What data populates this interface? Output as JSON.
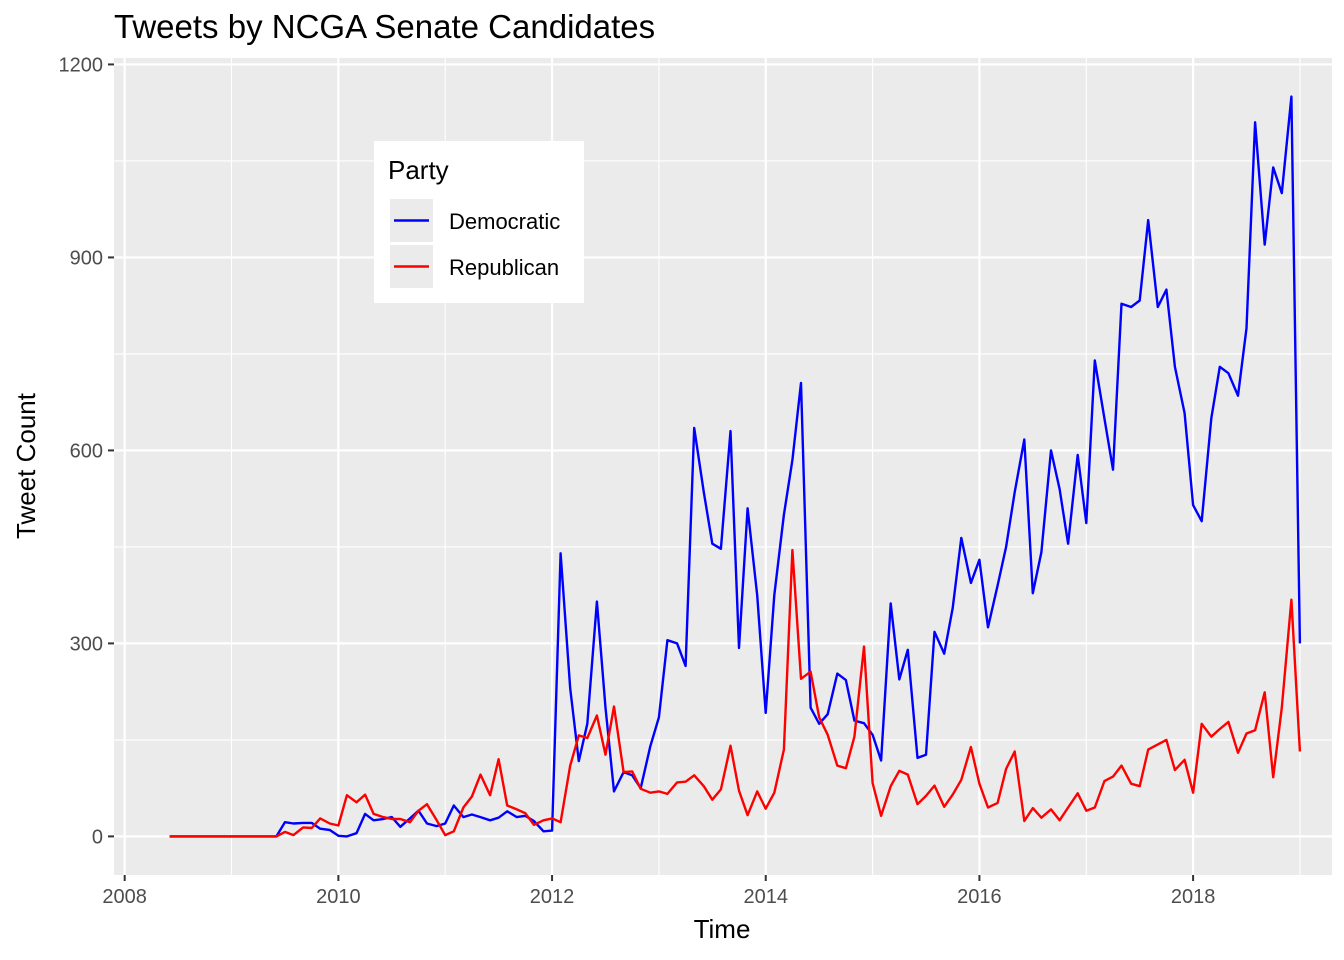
{
  "chart_data": {
    "type": "line",
    "title": "Tweets by NCGA Senate Candidates",
    "xlabel": "Time",
    "ylabel": "Tweet Count",
    "xlim": [
      2007.9,
      2019.3
    ],
    "ylim": [
      -60,
      1210
    ],
    "x_ticks": [
      2008,
      2010,
      2012,
      2014,
      2016,
      2018
    ],
    "x_tick_labels": [
      "2008",
      "2010",
      "2012",
      "2014",
      "2016",
      "2018"
    ],
    "y_ticks": [
      0,
      300,
      600,
      900,
      1200
    ],
    "y_tick_labels": [
      "0",
      "300",
      "600",
      "900",
      "1200"
    ],
    "grid": true,
    "legend": {
      "title": "Party",
      "placement": "top-left inside"
    },
    "series": [
      {
        "name": "Democratic",
        "color": "#0000ff",
        "points": [
          [
            2008.42,
            0
          ],
          [
            2008.5,
            0
          ],
          [
            2008.58,
            0
          ],
          [
            2008.67,
            0
          ],
          [
            2008.75,
            0
          ],
          [
            2008.83,
            0
          ],
          [
            2008.92,
            0
          ],
          [
            2009.0,
            0
          ],
          [
            2009.08,
            0
          ],
          [
            2009.17,
            0
          ],
          [
            2009.25,
            0
          ],
          [
            2009.33,
            0
          ],
          [
            2009.42,
            0
          ],
          [
            2009.5,
            22
          ],
          [
            2009.58,
            20
          ],
          [
            2009.67,
            21
          ],
          [
            2009.75,
            21
          ],
          [
            2009.83,
            12
          ],
          [
            2009.92,
            10
          ],
          [
            2010.0,
            1
          ],
          [
            2010.08,
            0
          ],
          [
            2010.17,
            5
          ],
          [
            2010.25,
            35
          ],
          [
            2010.33,
            25
          ],
          [
            2010.42,
            27
          ],
          [
            2010.5,
            30
          ],
          [
            2010.58,
            15
          ],
          [
            2010.67,
            28
          ],
          [
            2010.75,
            40
          ],
          [
            2010.83,
            20
          ],
          [
            2010.92,
            16
          ],
          [
            2011.0,
            20
          ],
          [
            2011.08,
            48
          ],
          [
            2011.17,
            30
          ],
          [
            2011.25,
            34
          ],
          [
            2011.33,
            30
          ],
          [
            2011.42,
            25
          ],
          [
            2011.5,
            29
          ],
          [
            2011.58,
            39
          ],
          [
            2011.67,
            30
          ],
          [
            2011.75,
            32
          ],
          [
            2011.83,
            24
          ],
          [
            2011.92,
            8
          ],
          [
            2012.0,
            9
          ],
          [
            2012.08,
            440
          ],
          [
            2012.17,
            230
          ],
          [
            2012.25,
            117
          ],
          [
            2012.33,
            175
          ],
          [
            2012.42,
            365
          ],
          [
            2012.5,
            200
          ],
          [
            2012.58,
            70
          ],
          [
            2012.67,
            100
          ],
          [
            2012.75,
            95
          ],
          [
            2012.83,
            75
          ],
          [
            2012.92,
            140
          ],
          [
            2013.0,
            185
          ],
          [
            2013.08,
            305
          ],
          [
            2013.17,
            300
          ],
          [
            2013.25,
            265
          ],
          [
            2013.33,
            635
          ],
          [
            2013.42,
            535
          ],
          [
            2013.5,
            455
          ],
          [
            2013.58,
            447
          ],
          [
            2013.67,
            630
          ],
          [
            2013.75,
            293
          ],
          [
            2013.83,
            510
          ],
          [
            2013.92,
            375
          ],
          [
            2014.0,
            192
          ],
          [
            2014.08,
            375
          ],
          [
            2014.17,
            500
          ],
          [
            2014.25,
            585
          ],
          [
            2014.33,
            705
          ],
          [
            2014.42,
            200
          ],
          [
            2014.5,
            175
          ],
          [
            2014.58,
            190
          ],
          [
            2014.67,
            253
          ],
          [
            2014.75,
            243
          ],
          [
            2014.83,
            180
          ],
          [
            2014.92,
            176
          ],
          [
            2015.0,
            158
          ],
          [
            2015.08,
            118
          ],
          [
            2015.17,
            362
          ],
          [
            2015.25,
            244
          ],
          [
            2015.33,
            290
          ],
          [
            2015.42,
            122
          ],
          [
            2015.5,
            127
          ],
          [
            2015.58,
            318
          ],
          [
            2015.67,
            284
          ],
          [
            2015.75,
            355
          ],
          [
            2015.83,
            464
          ],
          [
            2015.92,
            394
          ],
          [
            2016.0,
            430
          ],
          [
            2016.08,
            325
          ],
          [
            2016.17,
            390
          ],
          [
            2016.25,
            450
          ],
          [
            2016.33,
            535
          ],
          [
            2016.42,
            617
          ],
          [
            2016.5,
            378
          ],
          [
            2016.58,
            442
          ],
          [
            2016.67,
            600
          ],
          [
            2016.75,
            540
          ],
          [
            2016.83,
            455
          ],
          [
            2016.92,
            593
          ],
          [
            2017.0,
            487
          ],
          [
            2017.08,
            740
          ],
          [
            2017.17,
            650
          ],
          [
            2017.25,
            570
          ],
          [
            2017.33,
            828
          ],
          [
            2017.42,
            823
          ],
          [
            2017.5,
            833
          ],
          [
            2017.58,
            958
          ],
          [
            2017.67,
            823
          ],
          [
            2017.75,
            850
          ],
          [
            2017.83,
            730
          ],
          [
            2017.92,
            658
          ],
          [
            2018.0,
            515
          ],
          [
            2018.08,
            490
          ],
          [
            2018.17,
            650
          ],
          [
            2018.25,
            730
          ],
          [
            2018.33,
            720
          ],
          [
            2018.42,
            685
          ],
          [
            2018.5,
            790
          ],
          [
            2018.58,
            1110
          ],
          [
            2018.67,
            920
          ],
          [
            2018.75,
            1040
          ],
          [
            2018.83,
            1000
          ],
          [
            2018.92,
            1150
          ],
          [
            2019.0,
            300
          ]
        ]
      },
      {
        "name": "Republican",
        "color": "#ff0000",
        "points": [
          [
            2008.42,
            0
          ],
          [
            2008.5,
            0
          ],
          [
            2008.58,
            0
          ],
          [
            2008.67,
            0
          ],
          [
            2008.75,
            0
          ],
          [
            2008.83,
            0
          ],
          [
            2008.92,
            0
          ],
          [
            2009.0,
            0
          ],
          [
            2009.08,
            0
          ],
          [
            2009.17,
            0
          ],
          [
            2009.25,
            0
          ],
          [
            2009.33,
            0
          ],
          [
            2009.42,
            0
          ],
          [
            2009.5,
            7
          ],
          [
            2009.58,
            2
          ],
          [
            2009.67,
            14
          ],
          [
            2009.75,
            13
          ],
          [
            2009.83,
            28
          ],
          [
            2009.92,
            20
          ],
          [
            2010.0,
            17
          ],
          [
            2010.08,
            64
          ],
          [
            2010.17,
            53
          ],
          [
            2010.25,
            65
          ],
          [
            2010.33,
            35
          ],
          [
            2010.42,
            30
          ],
          [
            2010.5,
            27
          ],
          [
            2010.58,
            27
          ],
          [
            2010.67,
            22
          ],
          [
            2010.75,
            40
          ],
          [
            2010.83,
            50
          ],
          [
            2010.92,
            25
          ],
          [
            2011.0,
            2
          ],
          [
            2011.08,
            8
          ],
          [
            2011.17,
            45
          ],
          [
            2011.25,
            62
          ],
          [
            2011.33,
            96
          ],
          [
            2011.42,
            64
          ],
          [
            2011.5,
            120
          ],
          [
            2011.58,
            48
          ],
          [
            2011.67,
            42
          ],
          [
            2011.75,
            36
          ],
          [
            2011.83,
            18
          ],
          [
            2011.92,
            25
          ],
          [
            2012.0,
            28
          ],
          [
            2012.08,
            22
          ],
          [
            2012.17,
            110
          ],
          [
            2012.25,
            157
          ],
          [
            2012.33,
            153
          ],
          [
            2012.42,
            188
          ],
          [
            2012.5,
            127
          ],
          [
            2012.58,
            202
          ],
          [
            2012.67,
            100
          ],
          [
            2012.75,
            101
          ],
          [
            2012.83,
            74
          ],
          [
            2012.92,
            68
          ],
          [
            2013.0,
            70
          ],
          [
            2013.08,
            66
          ],
          [
            2013.17,
            84
          ],
          [
            2013.25,
            85
          ],
          [
            2013.33,
            95
          ],
          [
            2013.42,
            78
          ],
          [
            2013.5,
            57
          ],
          [
            2013.58,
            73
          ],
          [
            2013.67,
            141
          ],
          [
            2013.75,
            71
          ],
          [
            2013.83,
            33
          ],
          [
            2013.92,
            70
          ],
          [
            2014.0,
            43
          ],
          [
            2014.08,
            68
          ],
          [
            2014.17,
            135
          ],
          [
            2014.25,
            445
          ],
          [
            2014.33,
            245
          ],
          [
            2014.42,
            256
          ],
          [
            2014.5,
            185
          ],
          [
            2014.58,
            158
          ],
          [
            2014.67,
            110
          ],
          [
            2014.75,
            106
          ],
          [
            2014.83,
            155
          ],
          [
            2014.92,
            295
          ],
          [
            2015.0,
            83
          ],
          [
            2015.08,
            32
          ],
          [
            2015.17,
            78
          ],
          [
            2015.25,
            102
          ],
          [
            2015.33,
            96
          ],
          [
            2015.42,
            50
          ],
          [
            2015.5,
            63
          ],
          [
            2015.58,
            79
          ],
          [
            2015.67,
            46
          ],
          [
            2015.75,
            65
          ],
          [
            2015.83,
            88
          ],
          [
            2015.92,
            139
          ],
          [
            2016.0,
            82
          ],
          [
            2016.08,
            45
          ],
          [
            2016.17,
            52
          ],
          [
            2016.25,
            105
          ],
          [
            2016.33,
            132
          ],
          [
            2016.42,
            24
          ],
          [
            2016.5,
            44
          ],
          [
            2016.58,
            29
          ],
          [
            2016.67,
            42
          ],
          [
            2016.75,
            25
          ],
          [
            2016.83,
            45
          ],
          [
            2016.92,
            67
          ],
          [
            2017.0,
            40
          ],
          [
            2017.08,
            45
          ],
          [
            2017.17,
            86
          ],
          [
            2017.25,
            93
          ],
          [
            2017.33,
            110
          ],
          [
            2017.42,
            82
          ],
          [
            2017.5,
            78
          ],
          [
            2017.58,
            135
          ],
          [
            2017.67,
            143
          ],
          [
            2017.75,
            150
          ],
          [
            2017.83,
            103
          ],
          [
            2017.92,
            119
          ],
          [
            2018.0,
            68
          ],
          [
            2018.08,
            175
          ],
          [
            2018.17,
            155
          ],
          [
            2018.25,
            167
          ],
          [
            2018.33,
            178
          ],
          [
            2018.42,
            130
          ],
          [
            2018.5,
            160
          ],
          [
            2018.58,
            165
          ],
          [
            2018.67,
            224
          ],
          [
            2018.75,
            92
          ],
          [
            2018.83,
            200
          ],
          [
            2018.92,
            368
          ],
          [
            2019.0,
            132
          ]
        ]
      }
    ]
  }
}
